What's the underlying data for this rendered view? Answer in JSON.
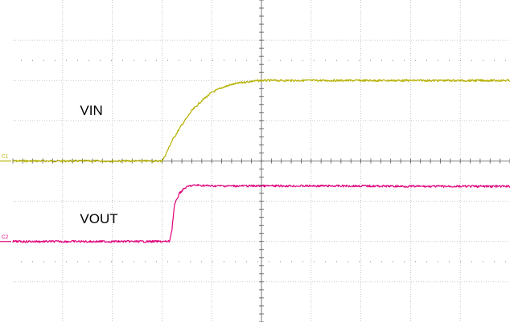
{
  "chart_data": {
    "type": "line",
    "title": "",
    "xlabel": "",
    "ylabel": "",
    "grid": true,
    "xlim": [
      0,
      10
    ],
    "ylim": [
      -4,
      4
    ],
    "x_divisions": 10,
    "y_divisions": 8,
    "series": [
      {
        "name": "VIN",
        "marker": "C1",
        "color": "#b5b000",
        "x": [
          0,
          1,
          2,
          3,
          3.05,
          3.2,
          3.4,
          3.6,
          3.8,
          4.0,
          4.2,
          4.4,
          4.6,
          4.8,
          5.0,
          5.2,
          5.4,
          6,
          7,
          8,
          9,
          10
        ],
        "y": [
          0.0,
          0.0,
          0.0,
          0.0,
          0.1,
          0.5,
          0.9,
          1.25,
          1.5,
          1.7,
          1.82,
          1.9,
          1.95,
          1.98,
          2.0,
          2.0,
          2.0,
          2.0,
          2.0,
          2.0,
          2.0,
          2.0
        ]
      },
      {
        "name": "VOUT",
        "marker": "C2",
        "color": "#e0007a",
        "x": [
          0,
          1,
          2,
          3,
          3.15,
          3.2,
          3.25,
          3.35,
          3.45,
          3.55,
          3.7,
          4,
          5,
          6,
          7,
          8,
          9,
          10
        ],
        "y": [
          -2.0,
          -2.0,
          -2.0,
          -2.0,
          -2.0,
          -1.7,
          -1.1,
          -0.8,
          -0.68,
          -0.62,
          -0.6,
          -0.62,
          -0.62,
          -0.62,
          -0.62,
          -0.63,
          -0.63,
          -0.63
        ]
      }
    ],
    "annotations": [
      {
        "text": "VIN",
        "x": 1.35,
        "y": 1.15
      },
      {
        "text": "VOUT",
        "x": 1.35,
        "y": -1.55
      }
    ]
  }
}
